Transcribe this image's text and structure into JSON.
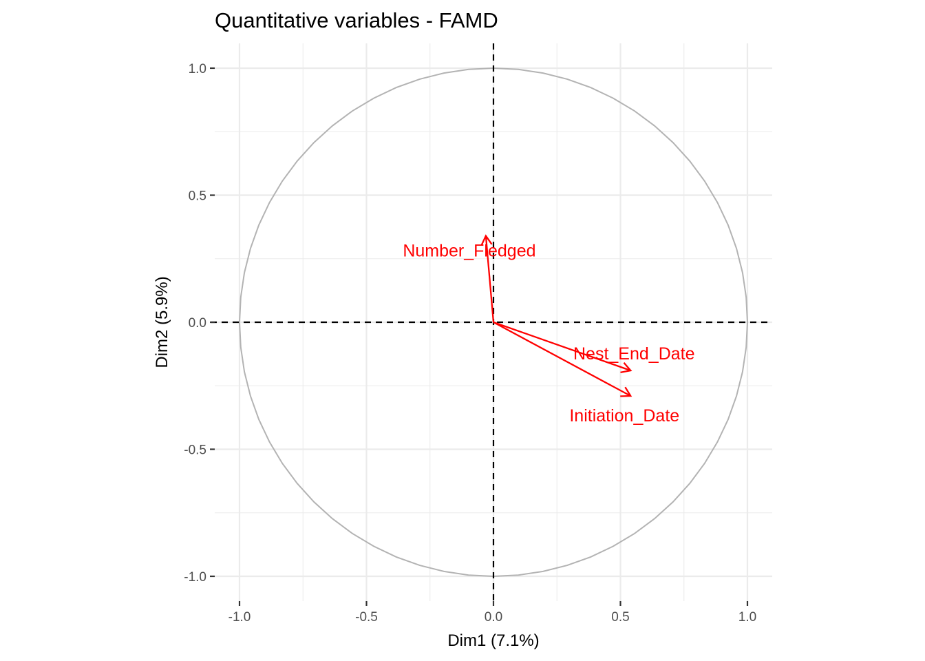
{
  "chart_data": {
    "type": "scatter",
    "subtype": "correlation-circle",
    "title": "Quantitative variables - FAMD",
    "xlabel": "Dim1 (7.1%)",
    "ylabel": "Dim2 (5.9%)",
    "xlim": [
      -1.1,
      1.1
    ],
    "ylim": [
      -1.1,
      1.1
    ],
    "xticks": [
      -1.0,
      -0.5,
      0.0,
      0.5,
      1.0
    ],
    "xtick_labels": [
      "-1.0",
      "-0.5",
      "0.0",
      "0.5",
      "1.0"
    ],
    "yticks": [
      -1.0,
      -0.5,
      0.0,
      0.5,
      1.0
    ],
    "ytick_labels": [
      "-1.0",
      "-0.5",
      "0.0",
      "0.5",
      "1.0"
    ],
    "grid": true,
    "unit_circle": true,
    "reference_lines": {
      "x": 0,
      "y": 0,
      "style": "dashed"
    },
    "arrow_color": "#ff0000",
    "circle_color": "#b3b3b3",
    "grid_color": "#ebebeb",
    "variables": [
      {
        "name": "Number_Fledged",
        "x": -0.03,
        "y": 0.34
      },
      {
        "name": "Nest_End_Date",
        "x": 0.54,
        "y": -0.19
      },
      {
        "name": "Initiation_Date",
        "x": 0.54,
        "y": -0.29
      }
    ]
  }
}
